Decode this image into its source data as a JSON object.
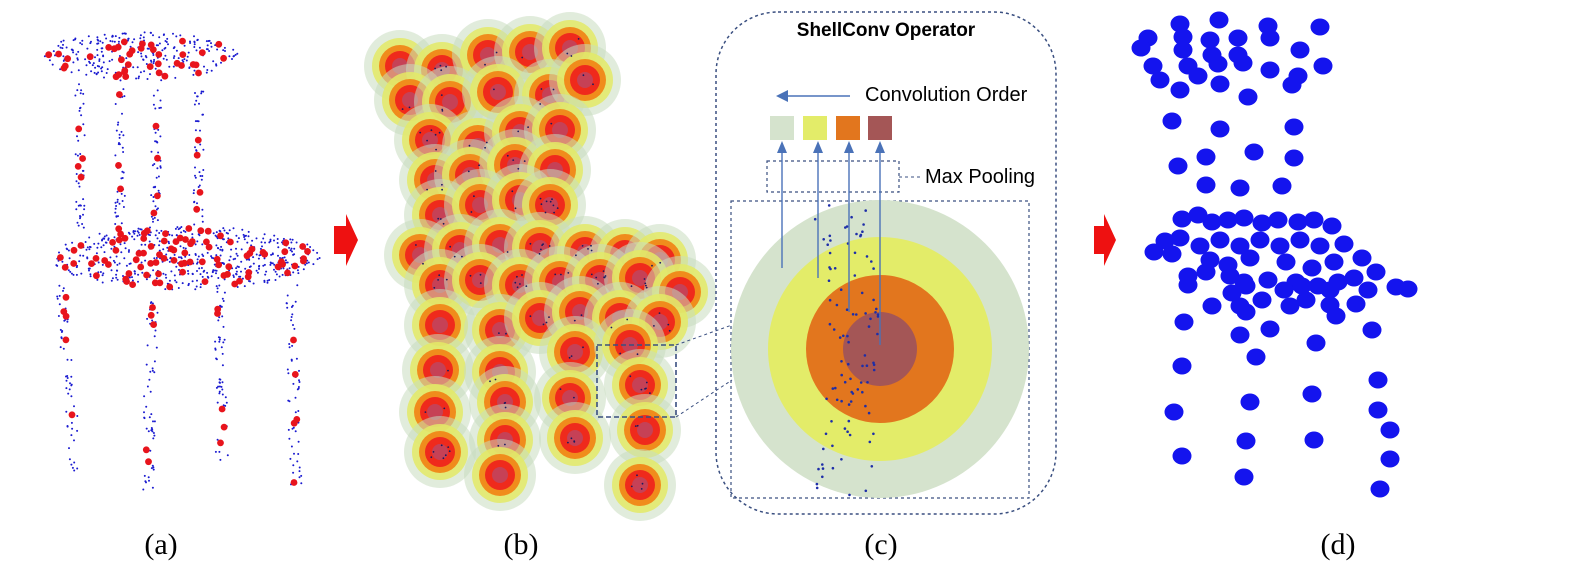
{
  "figure": {
    "panel_labels": [
      "(a)",
      "(b)",
      "(c)",
      "(d)"
    ],
    "operator": {
      "title": "ShellConv Operator",
      "convolution_order_label": "Convolution Order",
      "max_pooling_label": "Max Pooling",
      "shell_colors": [
        "#d5e3cd",
        "#e3ec69",
        "#e2761e",
        "#a45656"
      ]
    },
    "colors": {
      "sample_point": "#e8141c",
      "input_point": "#1a1ad0",
      "output_point": "#1414ee",
      "arrow": "#ee1111",
      "connector": "#3a4f80",
      "vertical_arrow": "#4a72b8"
    }
  }
}
